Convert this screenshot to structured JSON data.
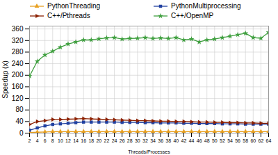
{
  "chart_data": {
    "type": "line",
    "xlabel": "Threads/Processes",
    "ylabel": "Speedup (x)",
    "x": [
      2,
      4,
      6,
      8,
      10,
      12,
      14,
      16,
      18,
      20,
      22,
      24,
      26,
      28,
      30,
      32,
      34,
      36,
      38,
      40,
      42,
      44,
      46,
      48,
      50,
      52,
      54,
      56,
      58,
      60,
      62,
      64
    ],
    "series": [
      {
        "name": "PythonThreading",
        "color": "#e8a020",
        "marker": "triangle",
        "values": [
          2,
          3,
          4,
          5,
          5,
          5,
          5,
          5,
          5,
          5,
          5,
          5,
          5,
          5,
          5,
          5,
          5,
          5,
          5,
          5,
          5,
          5,
          5,
          5,
          5,
          5,
          5,
          5,
          5,
          5,
          5,
          5
        ]
      },
      {
        "name": "PythonMultiprocessing",
        "color": "#2040a0",
        "marker": "square",
        "values": [
          10,
          18,
          25,
          30,
          32,
          34,
          36,
          38,
          38,
          38,
          38,
          38,
          37,
          37,
          37,
          36,
          36,
          35,
          35,
          35,
          34,
          34,
          33,
          33,
          33,
          32,
          32,
          32,
          31,
          31,
          31,
          31
        ]
      },
      {
        "name": "C++/Pthreads",
        "color": "#8b2000",
        "marker": "triangle-right",
        "values": [
          30,
          40,
          43,
          47,
          47,
          48,
          49,
          50,
          49,
          48,
          47,
          46,
          45,
          44,
          43,
          43,
          42,
          41,
          41,
          40,
          40,
          39,
          38,
          38,
          37,
          37,
          36,
          36,
          35,
          35,
          34,
          34
        ]
      },
      {
        "name": "C++/OpenMP",
        "color": "#40a040",
        "marker": "star",
        "values": [
          197,
          248,
          270,
          283,
          297,
          308,
          315,
          322,
          322,
          326,
          329,
          330,
          325,
          327,
          328,
          330,
          327,
          329,
          327,
          330,
          322,
          325,
          315,
          322,
          325,
          330,
          335,
          340,
          345,
          330,
          328,
          348
        ]
      }
    ],
    "xlim": [
      2,
      64
    ],
    "xticks": [
      2,
      4,
      6,
      8,
      10,
      12,
      14,
      16,
      18,
      20,
      22,
      24,
      26,
      28,
      30,
      32,
      34,
      36,
      38,
      40,
      42,
      44,
      46,
      48,
      50,
      52,
      54,
      56,
      58,
      60,
      62,
      64
    ],
    "ylim": [
      0,
      370
    ],
    "yticks": [
      0,
      40,
      80,
      120,
      160,
      200,
      240,
      280,
      320,
      360
    ],
    "grid": true,
    "legend": "top"
  }
}
